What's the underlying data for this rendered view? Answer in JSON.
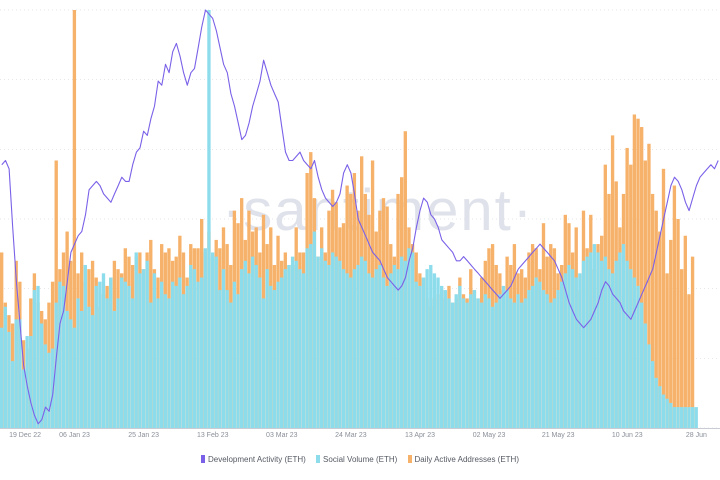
{
  "watermark": "·santiment·",
  "legend": {
    "dev": "Development Activity (ETH)",
    "social": "Social Volume (ETH)",
    "daa": "Daily Active Addresses (ETH)"
  },
  "colors": {
    "dev": "#7b61e8",
    "social": "#8ddcec",
    "daa": "#f6b26b",
    "grid": "#d8dbe0"
  },
  "chart_data": {
    "type": "bar",
    "xlabels": [
      "19 Dec 22",
      "06 Jan 23",
      "25 Jan 23",
      "13 Feb 23",
      "03 Mar 23",
      "24 Mar 23",
      "13 Apr 23",
      "02 May 23",
      "21 May 23",
      "10 Jun 23",
      "28 Jun"
    ],
    "x_ticks": [
      {
        "label": "19 Dec 22",
        "index": 2
      },
      {
        "label": "06 Jan 23",
        "index": 20
      },
      {
        "label": "25 Jan 23",
        "index": 39
      },
      {
        "label": "13 Feb 23",
        "index": 58
      },
      {
        "label": "03 Mar 23",
        "index": 77
      },
      {
        "label": "24 Mar 23",
        "index": 96
      },
      {
        "label": "13 Apr 23",
        "index": 115
      },
      {
        "label": "02 May 23",
        "index": 134
      },
      {
        "label": "21 May 23",
        "index": 153
      },
      {
        "label": "10 Jun 23",
        "index": 172
      },
      {
        "label": "28 Jun",
        "index": 191
      }
    ],
    "ylim": [
      0,
      100
    ],
    "series": [
      {
        "name": "Development Activity (ETH)",
        "type": "line",
        "values": [
          63,
          64,
          62,
          48,
          35,
          25,
          15,
          10,
          6,
          3,
          1,
          2,
          5,
          4,
          8,
          17,
          25,
          28,
          35,
          42,
          44,
          46,
          47,
          51,
          57,
          58,
          59,
          58,
          56,
          55,
          54,
          56,
          58,
          60,
          59,
          59,
          63,
          66,
          67,
          71,
          70,
          74,
          77,
          83,
          82,
          87,
          85,
          90,
          92,
          89,
          85,
          82,
          85,
          86,
          91,
          96,
          100,
          99,
          98,
          95,
          91,
          87,
          85,
          80,
          77,
          73,
          69,
          70,
          73,
          77,
          80,
          83,
          88,
          85,
          82,
          80,
          78,
          72,
          66,
          64,
          64,
          65,
          66,
          64,
          63,
          62,
          64,
          60,
          57,
          55,
          54,
          53,
          54,
          56,
          61,
          63,
          61,
          56,
          50,
          48,
          46,
          44,
          42,
          41,
          40,
          38,
          36,
          35,
          34,
          33,
          34,
          36,
          40,
          43,
          48,
          52,
          55,
          54,
          51,
          50,
          48,
          45,
          44,
          43,
          42,
          40,
          40,
          41,
          40,
          39,
          38,
          37,
          36,
          35,
          34,
          33,
          32,
          31,
          32,
          33,
          34,
          36,
          38,
          39,
          40,
          41,
          42,
          43,
          44,
          43,
          42,
          41,
          40,
          38,
          36,
          33,
          30,
          28,
          26,
          25,
          24,
          25,
          26,
          28,
          30,
          33,
          35,
          34,
          32,
          31,
          30,
          28,
          27,
          26,
          28,
          30,
          32,
          34,
          36,
          38,
          42,
          46,
          50,
          54,
          58,
          60,
          59,
          57,
          54,
          52,
          55,
          58,
          60,
          61,
          62,
          63,
          62,
          64
        ]
      },
      {
        "name": "Social Volume (ETH)",
        "type": "bar",
        "values": [
          24,
          29,
          23,
          16,
          26,
          26,
          14,
          22,
          22,
          33,
          34,
          25,
          20,
          18,
          19,
          30,
          35,
          34,
          28,
          26,
          24,
          31,
          28,
          39,
          29,
          27,
          34,
          35,
          37,
          31,
          36,
          28,
          31,
          36,
          35,
          34,
          31,
          42,
          37,
          38,
          40,
          30,
          37,
          31,
          35,
          32,
          31,
          35,
          34,
          36,
          32,
          34,
          39,
          38,
          35,
          36,
          43,
          100,
          42,
          41,
          33,
          38,
          33,
          30,
          35,
          32,
          38,
          40,
          37,
          41,
          39,
          36,
          31,
          38,
          34,
          33,
          35,
          36,
          38,
          39,
          41,
          40,
          38,
          37,
          43,
          44,
          47,
          41,
          43,
          40,
          39,
          42,
          41,
          40,
          38,
          37,
          36,
          38,
          39,
          41,
          40,
          37,
          36,
          38,
          39,
          36,
          34,
          37,
          39,
          38,
          41,
          40,
          43,
          42,
          35,
          34,
          36,
          38,
          39,
          37,
          36,
          34,
          33,
          31,
          30,
          32,
          34,
          31,
          30,
          32,
          33,
          31,
          30,
          32,
          31,
          29,
          30,
          32,
          34,
          33,
          31,
          30,
          32,
          30,
          31,
          33,
          34,
          36,
          35,
          33,
          32,
          30,
          31,
          33,
          35,
          37,
          39,
          38,
          36,
          37,
          40,
          41,
          42,
          44,
          42,
          40,
          41,
          38,
          37,
          40,
          42,
          44,
          40,
          38,
          36,
          34,
          30,
          25,
          20,
          16,
          12,
          10,
          8,
          7,
          6,
          5,
          5,
          5,
          5,
          5,
          5,
          5
        ]
      },
      {
        "name": "Daily Active Addresses (ETH)",
        "type": "bar",
        "values": [
          42,
          30,
          27,
          25,
          40,
          35,
          21,
          19,
          31,
          37,
          30,
          28,
          26,
          30,
          35,
          64,
          38,
          42,
          47,
          40,
          100,
          37,
          42,
          35,
          38,
          40,
          36,
          29,
          32,
          34,
          36,
          40,
          38,
          37,
          43,
          41,
          39,
          41,
          42,
          38,
          42,
          45,
          38,
          36,
          44,
          42,
          43,
          40,
          41,
          46,
          42,
          36,
          44,
          43,
          43,
          50,
          42,
          47,
          41,
          45,
          43,
          48,
          44,
          39,
          52,
          49,
          55,
          45,
          52,
          47,
          48,
          42,
          51,
          44,
          48,
          39,
          46,
          40,
          42,
          39,
          39,
          48,
          42,
          42,
          61,
          66,
          55,
          41,
          48,
          42,
          52,
          57,
          54,
          48,
          49,
          58,
          56,
          61,
          52,
          65,
          56,
          51,
          64,
          47,
          52,
          55,
          53,
          44,
          41,
          56,
          60,
          71,
          48,
          44,
          42,
          37,
          36,
          31,
          29,
          31,
          32,
          33,
          31,
          34,
          30,
          31,
          36,
          32,
          31,
          38,
          33,
          31,
          36,
          40,
          43,
          44,
          39,
          37,
          33,
          41,
          39,
          44,
          37,
          38,
          36,
          42,
          44,
          43,
          38,
          49,
          41,
          44,
          43,
          37,
          39,
          51,
          49,
          42,
          48,
          33,
          52,
          43,
          51,
          38,
          44,
          46,
          63,
          56,
          70,
          59,
          48,
          56,
          67,
          63,
          75,
          74,
          72,
          64,
          68,
          56,
          52,
          47,
          62,
          37,
          45,
          58,
          50,
          38,
          46,
          32,
          41
        ]
      }
    ]
  }
}
